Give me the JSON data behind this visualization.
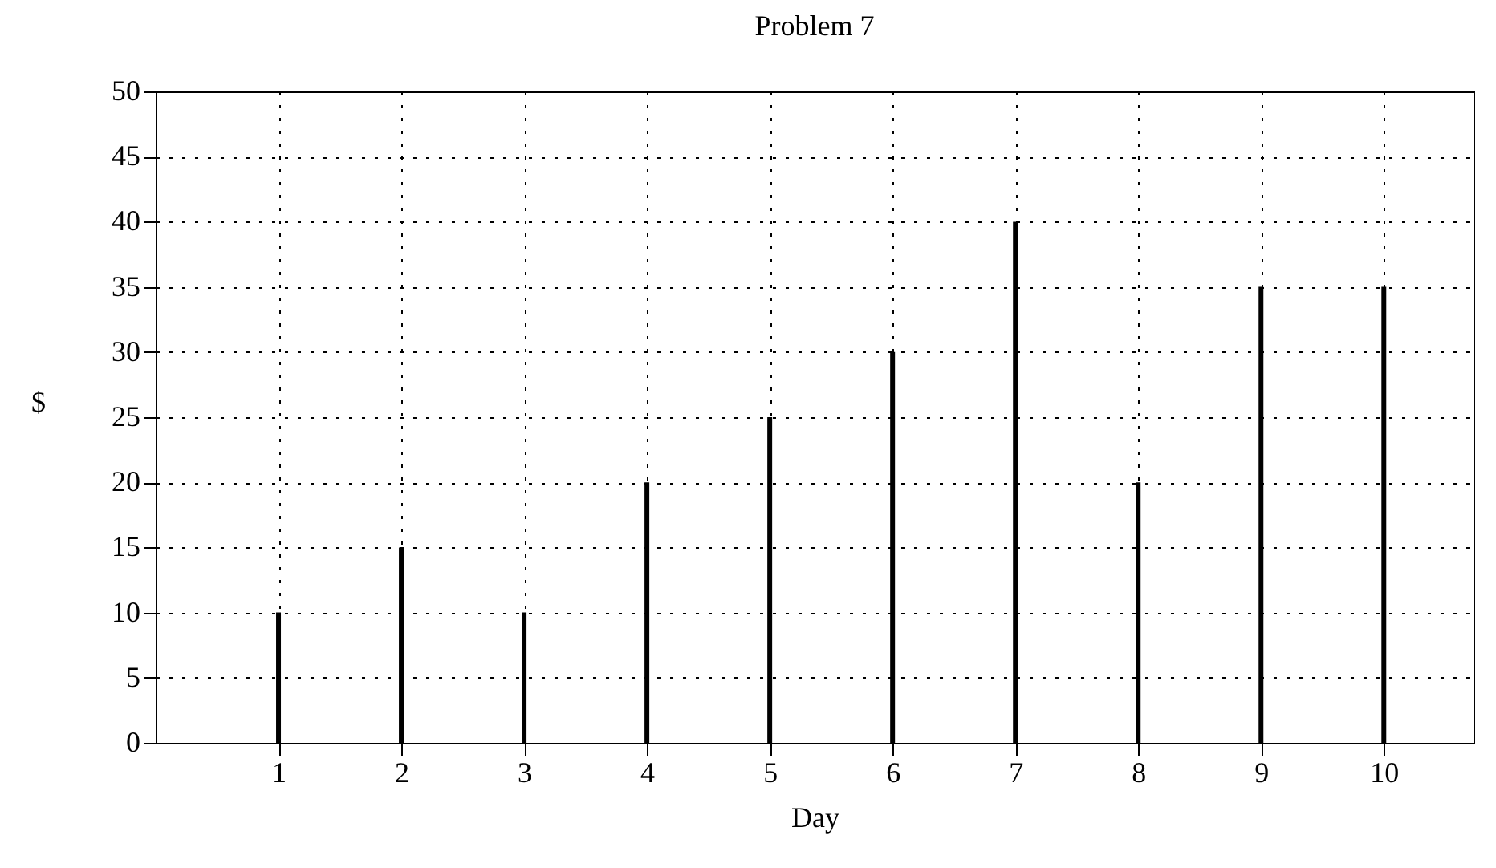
{
  "chart_data": {
    "type": "bar",
    "title": "Problem 7",
    "xlabel": "Day",
    "ylabel": "$",
    "x": [
      1,
      2,
      3,
      4,
      5,
      6,
      7,
      8,
      9,
      10
    ],
    "values": [
      10,
      15,
      10,
      20,
      25,
      30,
      40,
      20,
      35,
      35
    ],
    "color": "#000000",
    "xlim": [
      0,
      10.73
    ],
    "xticks": [
      1,
      2,
      3,
      4,
      5,
      6,
      7,
      8,
      9,
      10
    ],
    "ylim": [
      0,
      50
    ],
    "yticks": [
      0,
      5,
      10,
      15,
      20,
      25,
      30,
      35,
      40,
      45,
      50
    ],
    "grid": true
  }
}
